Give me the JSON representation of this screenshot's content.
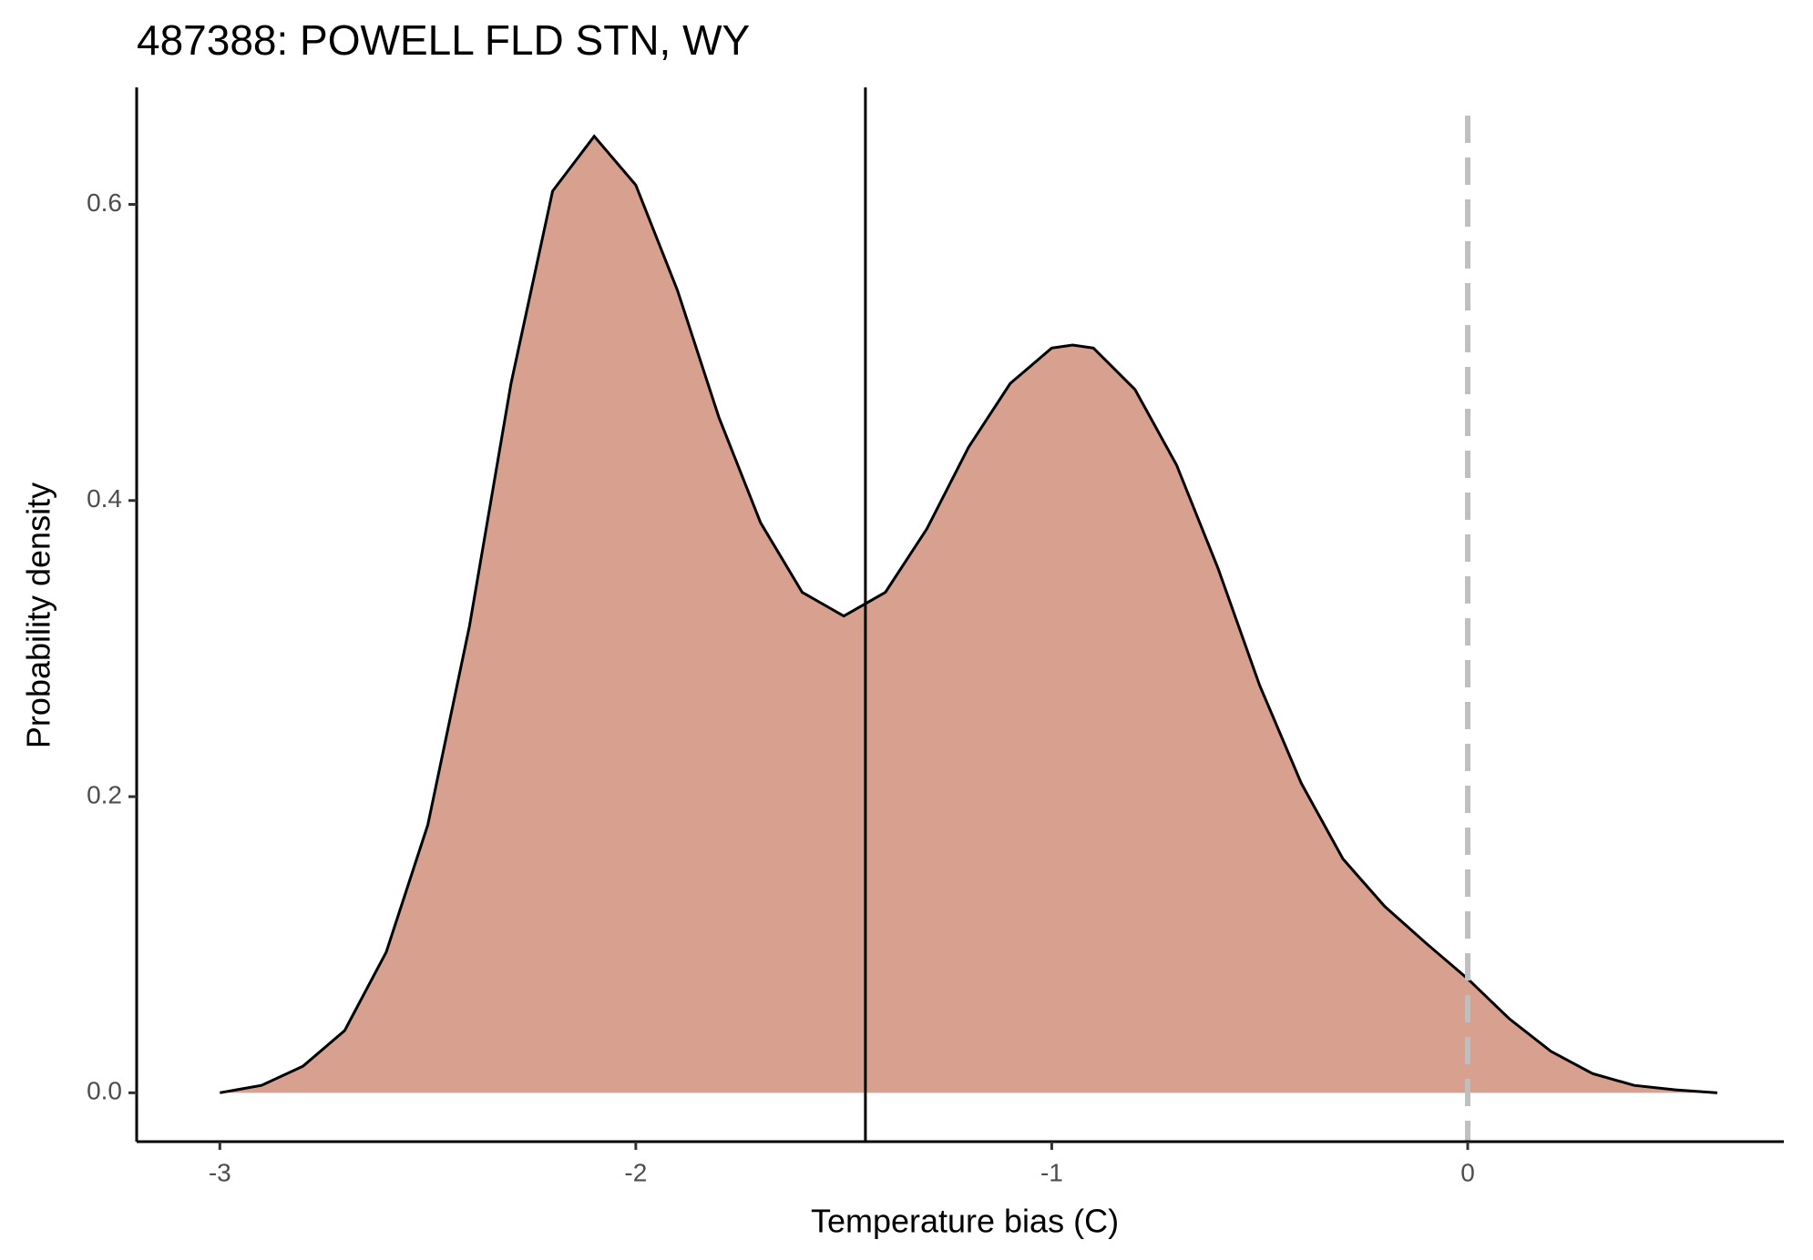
{
  "chart_data": {
    "type": "area",
    "title": "487388: POWELL FLD STN, WY",
    "x_label": "Temperature bias (C)",
    "y_label": "Probability density",
    "x": [
      -3.0,
      -2.9,
      -2.8,
      -2.7,
      -2.6,
      -2.5,
      -2.4,
      -2.3,
      -2.2,
      -2.1,
      -2.0,
      -1.9,
      -1.8,
      -1.7,
      -1.6,
      -1.5,
      -1.4,
      -1.3,
      -1.2,
      -1.1,
      -1.0,
      -0.95,
      -0.9,
      -0.8,
      -0.7,
      -0.6,
      -0.5,
      -0.4,
      -0.3,
      -0.2,
      -0.1,
      0.0,
      0.1,
      0.2,
      0.3,
      0.4,
      0.5,
      0.6
    ],
    "values": [
      0.0,
      0.005,
      0.018,
      0.042,
      0.095,
      0.181,
      0.315,
      0.479,
      0.609,
      0.646,
      0.613,
      0.542,
      0.456,
      0.385,
      0.338,
      0.322,
      0.338,
      0.381,
      0.436,
      0.479,
      0.503,
      0.505,
      0.503,
      0.475,
      0.424,
      0.354,
      0.275,
      0.209,
      0.158,
      0.126,
      0.101,
      0.077,
      0.05,
      0.028,
      0.013,
      0.005,
      0.002,
      0.0
    ],
    "color": "#d8a08e",
    "line_color": "#000000",
    "xlim": [
      -3.2,
      0.76
    ],
    "ylim": [
      -0.033,
      0.679
    ],
    "xticks": [
      -3,
      -2,
      -1,
      0
    ],
    "yticks": [
      {
        "value": 0,
        "label": "0.0"
      },
      0.2,
      0.4,
      0.6
    ],
    "vlines": [
      {
        "value": -1.448,
        "color": "#000000",
        "dashed": false
      },
      {
        "value": 0,
        "color": "#bfbfbf",
        "dashed": true
      }
    ],
    "grid": false
  }
}
